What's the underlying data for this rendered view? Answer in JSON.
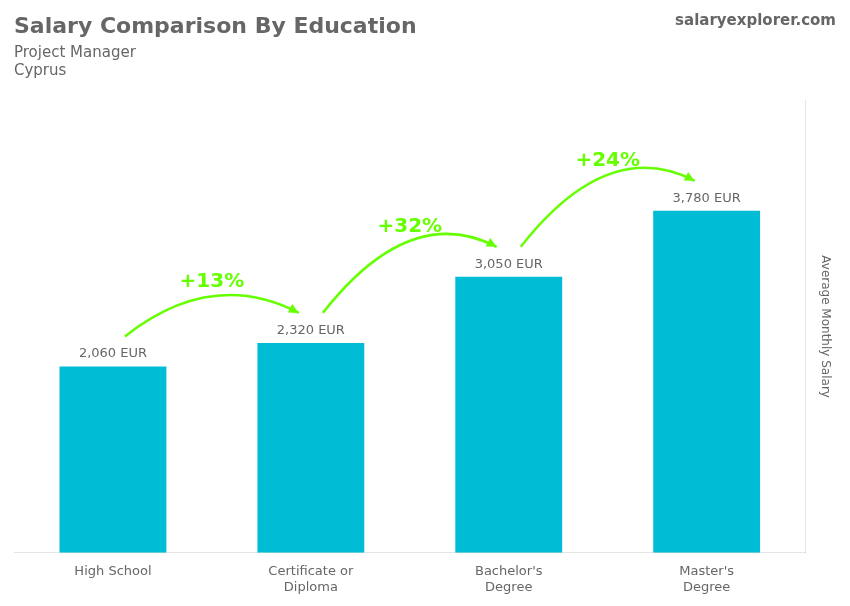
{
  "chart_data": {
    "type": "bar",
    "title": "Salary Comparison By Education",
    "subtitle": [
      "Project Manager",
      "Cyprus"
    ],
    "ylabel": "Average Monthly Salary",
    "categories": [
      "High School",
      "Certificate or\nDiploma",
      "Bachelor's\nDegree",
      "Master's\nDegree"
    ],
    "values": [
      2060,
      2320,
      3050,
      3780
    ],
    "value_labels": [
      "2,060 EUR",
      "2,320 EUR",
      "3,050 EUR",
      "3,780 EUR"
    ],
    "data_labels": true,
    "color": "#00bcd4",
    "ylim": [
      0,
      5000
    ],
    "grid": false,
    "tick_labels": "x",
    "annotations": [
      {
        "text": "salaryexplorer.com"
      },
      {
        "text": "+13%",
        "color": "#66ff00"
      },
      {
        "text": "+32%",
        "color": "#66ff00"
      },
      {
        "text": "+24%",
        "color": "#66ff00"
      }
    ]
  }
}
